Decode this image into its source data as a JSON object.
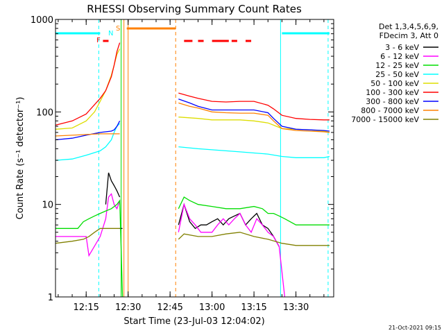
{
  "chart_data": {
    "type": "line",
    "title": "RHESSI Observing Summary Count Rates",
    "xlabel": "Start Time (23-Jul-03 12:04:02)",
    "ylabel": "Count Rate (s⁻¹ detector⁻¹)",
    "y_scale": "log",
    "ylim": [
      1,
      1000
    ],
    "xlim": [
      "12:04:02",
      "13:43:30"
    ],
    "x_ticks": [
      "12:15",
      "12:30",
      "12:45",
      "13:00",
      "13:15",
      "13:30"
    ],
    "y_ticks": [
      "1",
      "10",
      "100",
      "1000"
    ],
    "legend_position": "right",
    "legend_header": [
      "Det 1,3,4,5,6,9,",
      "FDecim 3, Att 0"
    ],
    "timestamp": "21-Oct-2021 09:15",
    "flag_labels": [
      "F",
      "N",
      "S"
    ],
    "series": [
      {
        "name": "3 - 6 keV",
        "color": "#000000",
        "segments": [
          {
            "x": [
              "12:27:00",
              "12:28:00"
            ],
            "y": [
              5.5,
              5.5
            ]
          },
          {
            "x": [
              "12:22:00",
              "12:23:00",
              "12:24:00",
              "12:25:00",
              "12:26:00",
              "12:27:00"
            ],
            "y": [
              10,
              22,
              18,
              16,
              14,
              12
            ]
          },
          {
            "x": [
              "12:48:00",
              "12:50:00",
              "12:52:00",
              "12:54:00",
              "12:56:00",
              "12:58:00",
              "13:00:00",
              "13:02:00",
              "13:04:00",
              "13:06:00",
              "13:08:00",
              "13:10:00",
              "13:12:00",
              "13:14:00",
              "13:16:00",
              "13:18:00",
              "13:20:00",
              "13:22:00",
              "13:24:00"
            ],
            "y": [
              6,
              10,
              6.5,
              5.5,
              6,
              6,
              6.5,
              7,
              6,
              7,
              7.5,
              8,
              6,
              7,
              8,
              6,
              5.5,
              4.5,
              3.5
            ]
          }
        ]
      },
      {
        "name": "6 - 12 keV",
        "color": "#ff00ff",
        "segments": [
          {
            "x": [
              "12:04:02",
              "12:10:00",
              "12:15:00",
              "12:16:00",
              "12:20:00",
              "12:22:00",
              "12:23:00",
              "12:24:00",
              "12:25:00",
              "12:26:00",
              "12:27:00"
            ],
            "y": [
              4.5,
              4.5,
              4.5,
              2.8,
              4.5,
              7,
              12,
              13,
              10,
              9,
              11
            ]
          },
          {
            "x": [
              "12:48:00",
              "12:50:00",
              "12:52:00",
              "12:54:00",
              "12:56:00",
              "12:58:00",
              "13:00:00",
              "13:02:00",
              "13:04:00",
              "13:06:00",
              "13:08:00",
              "13:10:00",
              "13:12:00",
              "13:14:00",
              "13:16:00",
              "13:18:00",
              "13:20:00",
              "13:22:00",
              "13:24:00",
              "13:26:00"
            ],
            "y": [
              5,
              10,
              7,
              6,
              5,
              5,
              5,
              6,
              7,
              6,
              7,
              8,
              6,
              5,
              7,
              6,
              5,
              4.5,
              3.5,
              1
            ]
          }
        ]
      },
      {
        "name": "12 - 25 keV",
        "color": "#00dd00",
        "segments": [
          {
            "x": [
              "12:04:02",
              "12:12:00",
              "12:14:00",
              "12:16:00",
              "12:18:00",
              "12:20:00",
              "12:22:00",
              "12:24:00",
              "12:26:00",
              "12:27:00",
              "12:28:00"
            ],
            "y": [
              5.5,
              5.5,
              6.5,
              7,
              7.5,
              8,
              8.5,
              9,
              10,
              11,
              1
            ]
          },
          {
            "x": [
              "12:48:00",
              "12:50:00",
              "12:52:00",
              "12:55:00",
              "13:00:00",
              "13:05:00",
              "13:10:00",
              "13:15:00",
              "13:18:00",
              "13:20:00",
              "13:22:00",
              "13:24:00",
              "13:26:00",
              "13:30:00",
              "13:35:00",
              "13:40:00",
              "13:42:00"
            ],
            "y": [
              9,
              12,
              11,
              10,
              9.5,
              9,
              9,
              9.5,
              9,
              8,
              8,
              7.5,
              7,
              6,
              6,
              6,
              6
            ]
          }
        ]
      },
      {
        "name": "25 - 50 keV",
        "color": "#00ffff",
        "segments": [
          {
            "x": [
              "12:04:02",
              "12:10:00",
              "12:15:00",
              "12:20:00",
              "12:22:00",
              "12:24:00",
              "12:25:00",
              "12:26:00",
              "12:27:00"
            ],
            "y": [
              30,
              31,
              34,
              38,
              42,
              50,
              60,
              70,
              75
            ]
          },
          {
            "x": [
              "12:48:00",
              "12:55:00",
              "13:00:00",
              "13:05:00",
              "13:10:00",
              "13:15:00",
              "13:20:00",
              "13:25:00",
              "13:30:00",
              "13:35:00",
              "13:40:00",
              "13:42:00"
            ],
            "y": [
              42,
              40,
              39,
              38,
              37,
              36,
              35,
              33,
              32,
              32,
              32,
              33
            ]
          }
        ]
      },
      {
        "name": "50 - 100 keV",
        "color": "#dddd00",
        "segments": [
          {
            "x": [
              "12:04:02",
              "12:10:00",
              "12:15:00",
              "12:18:00",
              "12:20:00",
              "12:22:00",
              "12:24:00",
              "12:25:00",
              "12:26:00",
              "12:27:00"
            ],
            "y": [
              65,
              67,
              80,
              100,
              130,
              170,
              250,
              320,
              420,
              480
            ]
          },
          {
            "x": [
              "12:48:00",
              "12:55:00",
              "13:00:00",
              "13:05:00",
              "13:10:00",
              "13:15:00",
              "13:20:00",
              "13:22:00",
              "13:25:00",
              "13:30:00",
              "13:35:00",
              "13:40:00",
              "13:42:00"
            ],
            "y": [
              88,
              85,
              82,
              82,
              82,
              80,
              76,
              72,
              66,
              65,
              64,
              62,
              60
            ]
          }
        ]
      },
      {
        "name": "100 - 300 keV",
        "color": "#ff0000",
        "segments": [
          {
            "x": [
              "12:04:02",
              "12:10:00",
              "12:15:00",
              "12:18:00",
              "12:20:00",
              "12:22:00",
              "12:24:00",
              "12:25:00",
              "12:26:00",
              "12:27:00"
            ],
            "y": [
              72,
              80,
              95,
              120,
              140,
              170,
              240,
              320,
              450,
              560
            ]
          },
          {
            "x": [
              "12:48:00",
              "12:52:00",
              "12:55:00",
              "13:00:00",
              "13:05:00",
              "13:10:00",
              "13:15:00",
              "13:20:00",
              "13:22:00",
              "13:25:00",
              "13:30:00",
              "13:35:00",
              "13:40:00",
              "13:42:00"
            ],
            "y": [
              160,
              148,
              140,
              130,
              128,
              130,
              130,
              118,
              108,
              92,
              85,
              83,
              82,
              82
            ]
          }
        ]
      },
      {
        "name": "300 - 800 keV",
        "color": "#0000ff",
        "segments": [
          {
            "x": [
              "12:04:02",
              "12:10:00",
              "12:15:00",
              "12:20:00",
              "12:24:00",
              "12:25:00",
              "12:26:00",
              "12:27:00"
            ],
            "y": [
              50,
              52,
              56,
              60,
              62,
              64,
              70,
              80
            ]
          },
          {
            "x": [
              "12:48:00",
              "12:52:00",
              "12:55:00",
              "13:00:00",
              "13:05:00",
              "13:10:00",
              "13:15:00",
              "13:20:00",
              "13:22:00",
              "13:25:00",
              "13:30:00",
              "13:35:00",
              "13:40:00",
              "13:42:00"
            ],
            "y": [
              138,
              125,
              115,
              105,
              105,
              105,
              105,
              98,
              85,
              70,
              65,
              64,
              63,
              62
            ]
          }
        ]
      },
      {
        "name": "800 - 7000 keV",
        "color": "#ff8000",
        "segments": [
          {
            "x": [
              "12:04:02",
              "12:10:00",
              "12:15:00",
              "12:20:00",
              "12:24:00",
              "12:26:00",
              "12:27:00"
            ],
            "y": [
              55,
              56,
              57,
              58,
              58,
              58,
              58
            ]
          },
          {
            "x": [
              "12:48:00",
              "12:52:00",
              "12:55:00",
              "13:00:00",
              "13:05:00",
              "13:10:00",
              "13:15:00",
              "13:20:00",
              "13:22:00",
              "13:25:00",
              "13:30:00",
              "13:35:00",
              "13:40:00",
              "13:42:00"
            ],
            "y": [
              125,
              115,
              110,
              100,
              98,
              97,
              97,
              92,
              80,
              66,
              63,
              62,
              61,
              60
            ]
          }
        ]
      },
      {
        "name": "7000 - 15000 keV",
        "color": "#808000",
        "segments": [
          {
            "x": [
              "12:04:02",
              "12:10:00",
              "12:14:00",
              "12:16:00",
              "12:18:00",
              "12:20:00",
              "12:22:00",
              "12:24:00",
              "12:26:00",
              "12:27:00"
            ],
            "y": [
              3.8,
              4,
              4.2,
              4.5,
              5,
              5.5,
              5.5,
              5.5,
              5.5,
              5.5
            ]
          },
          {
            "x": [
              "12:48:00",
              "12:50:00",
              "12:55:00",
              "13:00:00",
              "13:05:00",
              "13:10:00",
              "13:15:00",
              "13:20:00",
              "13:25:00",
              "13:30:00",
              "13:35:00",
              "13:40:00",
              "13:42:00"
            ],
            "y": [
              4.2,
              4.8,
              4.5,
              4.5,
              4.8,
              5,
              4.5,
              4.2,
              3.8,
              3.6,
              3.6,
              3.6,
              3.6
            ]
          }
        ]
      }
    ],
    "attenuator_bars": [
      {
        "color": "#00ffff",
        "x": [
          [
            "12:04:02",
            "12:20:00"
          ],
          [
            "13:25:00",
            "13:42:00"
          ]
        ]
      },
      {
        "color": "#ff0000",
        "x": [
          [
            "12:21:00",
            "12:23:00"
          ],
          [
            "12:50:00",
            "12:53:00"
          ],
          [
            "12:55:00",
            "12:57:00"
          ],
          [
            "13:00:00",
            "13:06:00"
          ],
          [
            "13:07:00",
            "13:09:00"
          ],
          [
            "13:12:00",
            "13:14:00"
          ]
        ]
      },
      {
        "color": "#ff8000",
        "x": [
          [
            "12:29:30",
            "12:47:00"
          ]
        ]
      }
    ],
    "vertical_markers": [
      {
        "time": "12:04:02",
        "color": "#00ffff",
        "style": "solid"
      },
      {
        "time": "12:19:30",
        "color": "#00ffff",
        "style": "dashed"
      },
      {
        "time": "12:27:30",
        "color": "#00dd00",
        "style": "solid"
      },
      {
        "time": "12:28:30",
        "color": "#ff8000",
        "style": "solid"
      },
      {
        "time": "12:30:00",
        "color": "#ff8000",
        "style": "solid"
      },
      {
        "time": "12:47:00",
        "color": "#ff8000",
        "style": "dashed"
      },
      {
        "time": "13:24:30",
        "color": "#00ffff",
        "style": "solid"
      },
      {
        "time": "13:41:30",
        "color": "#00ffff",
        "style": "dashed"
      }
    ]
  }
}
